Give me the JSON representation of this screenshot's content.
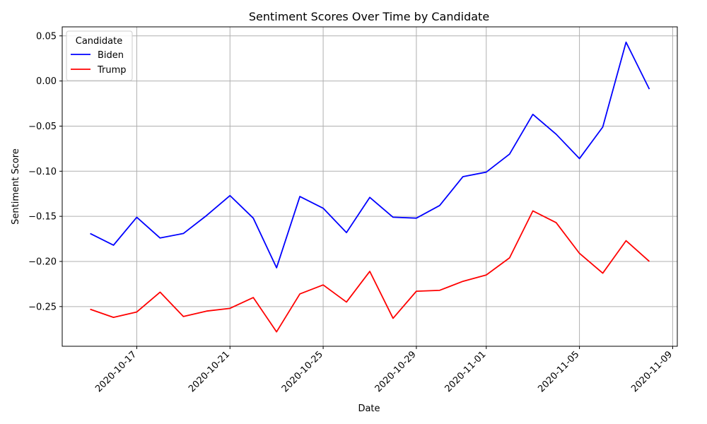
{
  "chart_data": {
    "type": "line",
    "title": "Sentiment Scores Over Time by Candidate",
    "xlabel": "Date",
    "ylabel": "Sentiment Score",
    "legend_title": "Candidate",
    "legend_position": "upper-left",
    "grid": true,
    "x": [
      "2020-10-15",
      "2020-10-16",
      "2020-10-17",
      "2020-10-18",
      "2020-10-19",
      "2020-10-20",
      "2020-10-21",
      "2020-10-22",
      "2020-10-23",
      "2020-10-24",
      "2020-10-25",
      "2020-10-26",
      "2020-10-27",
      "2020-10-28",
      "2020-10-29",
      "2020-10-30",
      "2020-10-31",
      "2020-11-01",
      "2020-11-02",
      "2020-11-03",
      "2020-11-04",
      "2020-11-05",
      "2020-11-06",
      "2020-11-07",
      "2020-11-08"
    ],
    "xlim": [
      "2020-10-13.8",
      "2020-11-09.2"
    ],
    "ylim": [
      -0.294,
      0.06
    ],
    "x_ticks": [
      "2020-10-17",
      "2020-10-21",
      "2020-10-25",
      "2020-10-29",
      "2020-11-01",
      "2020-11-05",
      "2020-11-09"
    ],
    "y_ticks": [
      0.05,
      0.0,
      -0.05,
      -0.1,
      -0.15,
      -0.2,
      -0.25
    ],
    "y_tick_labels": [
      "0.05",
      "0.00",
      "−0.05",
      "−0.10",
      "−0.15",
      "−0.20",
      "−0.25"
    ],
    "series": [
      {
        "name": "Biden",
        "color": "#0000ff",
        "values": [
          -0.169,
          -0.182,
          -0.151,
          -0.174,
          -0.169,
          -0.149,
          -0.127,
          -0.152,
          -0.207,
          -0.128,
          -0.141,
          -0.168,
          -0.129,
          -0.151,
          -0.152,
          -0.138,
          -0.106,
          -0.101,
          -0.081,
          -0.037,
          -0.059,
          -0.086,
          -0.051,
          0.043,
          -0.009
        ]
      },
      {
        "name": "Trump",
        "color": "#ff0000",
        "values": [
          -0.253,
          -0.262,
          -0.256,
          -0.234,
          -0.261,
          -0.255,
          -0.252,
          -0.24,
          -0.278,
          -0.236,
          -0.226,
          -0.245,
          -0.211,
          -0.263,
          -0.233,
          -0.232,
          -0.222,
          -0.215,
          -0.196,
          -0.144,
          -0.157,
          -0.191,
          -0.213,
          -0.177,
          -0.2
        ]
      }
    ]
  }
}
